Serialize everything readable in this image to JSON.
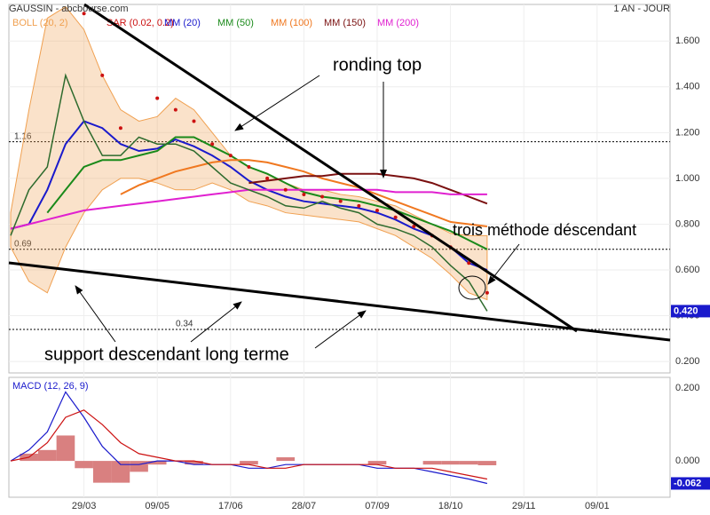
{
  "header": {
    "title": "GAUSSIN - abcbourse.com",
    "period": "1 AN - JOUR"
  },
  "annotations": [
    "ronding top",
    "trois méthode déscendant",
    "support descendant long terme"
  ],
  "chart_data": [
    {
      "type": "stock",
      "categories": [
        null,
        null,
        null,
        null,
        "29/03",
        null,
        null,
        null,
        "09/05",
        null,
        null,
        null,
        "17/06",
        null,
        null,
        null,
        "28/07",
        null,
        null,
        null,
        "07/09",
        null,
        null,
        null,
        "18/10",
        null,
        null,
        null,
        "29/11",
        null,
        null,
        null,
        "09/01",
        null,
        null,
        null
      ],
      "ylim": [
        0.15,
        1.76
      ],
      "yticks": [
        {
          "value": 0.2,
          "label": "0.200"
        },
        {
          "value": 0.4,
          "label": "0.400"
        },
        {
          "value": 0.6,
          "label": "0.600"
        },
        {
          "value": 0.8,
          "label": "0.800"
        },
        {
          "value": 1.0,
          "label": "1.000"
        },
        {
          "value": 1.2,
          "label": "1.200"
        },
        {
          "value": 1.4,
          "label": "1.400"
        },
        {
          "value": 1.6,
          "label": "1.600"
        }
      ],
      "grid": true,
      "hlines": [
        1.16,
        0.69,
        0.34
      ],
      "price": {
        "color": "#2e6b2e",
        "values": [
          0.75,
          0.95,
          1.05,
          1.45,
          1.25,
          1.1,
          1.1,
          1.18,
          1.15,
          1.15,
          1.12,
          1.05,
          0.98,
          0.95,
          0.92,
          0.88,
          0.87,
          0.9,
          0.87,
          0.85,
          0.8,
          0.78,
          0.75,
          0.7,
          0.62,
          0.55,
          0.42,
          null,
          null,
          null,
          null,
          null,
          null,
          null,
          null,
          null
        ],
        "value_labels": [
          null,
          null,
          null,
          null,
          null,
          null,
          null,
          null,
          null,
          null,
          null,
          null,
          null,
          null,
          null,
          null,
          null,
          null,
          null,
          null,
          null,
          null,
          null,
          null,
          null,
          null,
          "0.420",
          null,
          null,
          null,
          null,
          null,
          null,
          null,
          null,
          null
        ]
      },
      "bollinger": {
        "name": "BOLL (20, 2)",
        "color": "#f0a050",
        "upper": [
          0.85,
          1.3,
          1.7,
          1.75,
          1.65,
          1.45,
          1.3,
          1.25,
          1.27,
          1.35,
          1.3,
          1.2,
          1.1,
          1.05,
          1.02,
          0.98,
          0.95,
          0.95,
          0.93,
          0.92,
          0.9,
          0.88,
          0.84,
          0.8,
          0.76,
          0.75,
          0.75,
          null,
          null,
          null,
          null,
          null,
          null,
          null,
          null,
          null
        ],
        "lower": [
          0.7,
          0.55,
          0.5,
          0.7,
          0.85,
          0.95,
          1.0,
          1.0,
          0.98,
          0.95,
          0.95,
          0.98,
          0.95,
          0.9,
          0.88,
          0.85,
          0.84,
          0.83,
          0.82,
          0.81,
          0.78,
          0.75,
          0.7,
          0.65,
          0.58,
          0.5,
          0.47,
          null,
          null,
          null,
          null,
          null,
          null,
          null,
          null,
          null
        ]
      },
      "sar": {
        "name": "SAR (0.02, 0.2)",
        "color": "#cc1111",
        "values": [
          null,
          null,
          null,
          null,
          1.72,
          1.45,
          1.22,
          null,
          1.35,
          1.3,
          1.25,
          1.15,
          1.1,
          1.05,
          1.0,
          0.95,
          0.93,
          0.92,
          0.9,
          0.88,
          0.86,
          0.83,
          0.79,
          0.75,
          0.7,
          0.63,
          0.5,
          null,
          null,
          null,
          null,
          null,
          null,
          null,
          null,
          null
        ]
      },
      "series": [
        {
          "name": "MM (20)",
          "color": "#1a1acc",
          "values": [
            0.78,
            0.8,
            0.95,
            1.15,
            1.25,
            1.22,
            1.15,
            1.12,
            1.13,
            1.17,
            1.14,
            1.1,
            1.05,
            0.99,
            0.95,
            0.92,
            0.9,
            0.89,
            0.88,
            0.87,
            0.85,
            0.82,
            0.78,
            0.75,
            0.7,
            0.63,
            0.6,
            null,
            null,
            null,
            null,
            null,
            null,
            null,
            null,
            null
          ]
        },
        {
          "name": "MM (50)",
          "color": "#1a8a1a",
          "values": [
            null,
            null,
            0.85,
            0.95,
            1.05,
            1.08,
            1.08,
            1.1,
            1.12,
            1.18,
            1.18,
            1.14,
            1.1,
            1.05,
            1.02,
            0.98,
            0.94,
            0.92,
            0.91,
            0.9,
            0.88,
            0.86,
            0.83,
            0.8,
            0.77,
            0.73,
            0.69,
            null,
            null,
            null,
            null,
            null,
            null,
            null,
            null,
            null
          ]
        },
        {
          "name": "MM (100)",
          "color": "#f07820",
          "values": [
            null,
            null,
            null,
            null,
            null,
            null,
            0.93,
            0.97,
            1.0,
            1.03,
            1.05,
            1.07,
            1.08,
            1.08,
            1.07,
            1.05,
            1.03,
            1.0,
            0.98,
            0.96,
            0.93,
            0.9,
            0.87,
            0.84,
            0.81,
            0.8,
            0.79,
            null,
            null,
            null,
            null,
            null,
            null,
            null,
            null,
            null
          ]
        },
        {
          "name": "MM (150)",
          "color": "#7a1010",
          "values": [
            null,
            null,
            null,
            null,
            null,
            null,
            null,
            null,
            null,
            null,
            null,
            null,
            null,
            0.98,
            0.99,
            1.0,
            1.01,
            1.01,
            1.02,
            1.02,
            1.02,
            1.01,
            1.0,
            0.98,
            0.95,
            0.92,
            0.89,
            null,
            null,
            null,
            null,
            null,
            null,
            null,
            null,
            null
          ]
        },
        {
          "name": "MM (200)",
          "color": "#e020d0",
          "values": [
            0.78,
            0.8,
            0.82,
            0.84,
            0.86,
            0.87,
            0.88,
            0.89,
            0.9,
            0.91,
            0.92,
            0.93,
            0.94,
            0.95,
            0.95,
            0.95,
            0.95,
            0.95,
            0.95,
            0.95,
            0.95,
            0.94,
            0.94,
            0.94,
            0.93,
            0.93,
            0.93,
            null,
            null,
            null,
            null,
            null,
            null,
            null,
            null,
            null
          ]
        }
      ]
    },
    {
      "type": "macd",
      "title": "MACD (12, 26, 9)",
      "ylim": [
        -0.1,
        0.23
      ],
      "yticks": [
        {
          "value": 0.0,
          "label": "0.000"
        },
        {
          "value": 0.2,
          "label": "0.200"
        }
      ],
      "histogram": {
        "color": "#d98080",
        "values": [
          0.0,
          0.02,
          0.03,
          0.07,
          -0.02,
          -0.06,
          -0.06,
          -0.03,
          -0.01,
          0.0,
          -0.01,
          0.0,
          0.0,
          -0.01,
          0.0,
          0.01,
          0.0,
          0.0,
          0.0,
          0.0,
          -0.01,
          0.0,
          0.0,
          -0.01,
          -0.01,
          -0.01,
          -0.012,
          null,
          null,
          null,
          null,
          null,
          null,
          null,
          null,
          null
        ]
      },
      "series": [
        {
          "color": "#1a1acc",
          "values": [
            0.0,
            0.03,
            0.08,
            0.19,
            0.12,
            0.04,
            -0.01,
            -0.01,
            0.0,
            0.0,
            -0.01,
            -0.01,
            -0.01,
            -0.02,
            -0.02,
            -0.01,
            -0.01,
            -0.01,
            -0.01,
            -0.01,
            -0.02,
            -0.02,
            -0.02,
            -0.03,
            -0.04,
            -0.05,
            -0.062,
            null,
            null,
            null,
            null,
            null,
            null,
            null,
            null,
            null
          ],
          "value_labels": [
            null,
            null,
            null,
            null,
            null,
            null,
            null,
            null,
            null,
            null,
            null,
            null,
            null,
            null,
            null,
            null,
            null,
            null,
            null,
            null,
            null,
            null,
            null,
            null,
            null,
            null,
            "-0.062",
            null,
            null,
            null,
            null,
            null,
            null,
            null,
            null,
            null
          ]
        },
        {
          "color": "#cc1111",
          "values": [
            0.0,
            0.01,
            0.05,
            0.12,
            0.14,
            0.1,
            0.05,
            0.02,
            0.01,
            0.0,
            0.0,
            -0.01,
            -0.01,
            -0.01,
            -0.02,
            -0.02,
            -0.01,
            -0.01,
            -0.01,
            -0.01,
            -0.01,
            -0.02,
            -0.02,
            -0.02,
            -0.03,
            -0.04,
            -0.05,
            null,
            null,
            null,
            null,
            null,
            null,
            null,
            null,
            null
          ]
        }
      ]
    }
  ]
}
